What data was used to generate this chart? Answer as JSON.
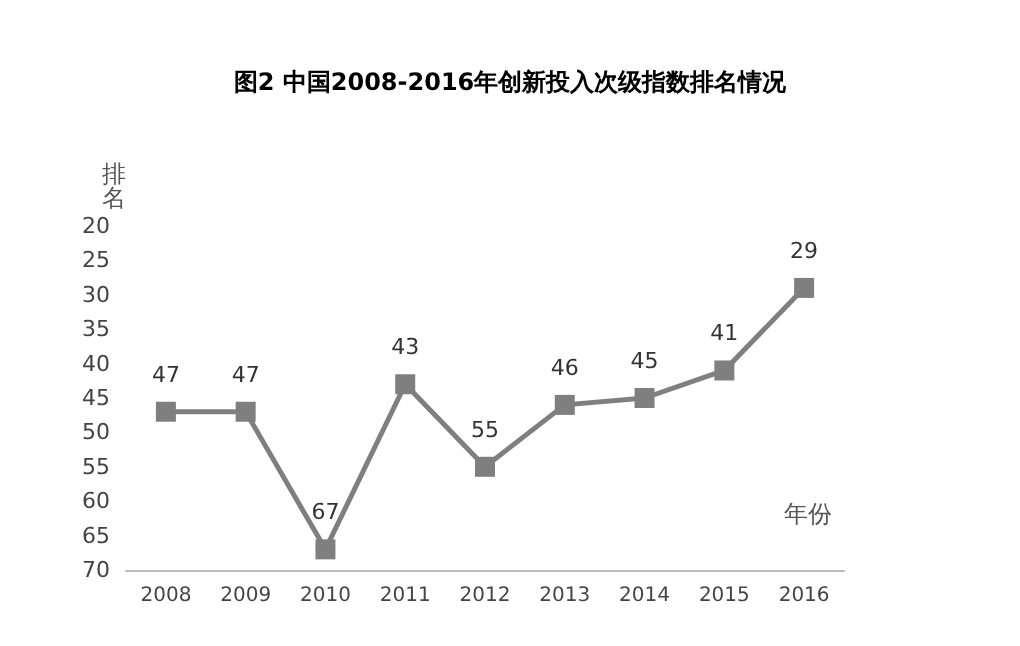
{
  "chart_data": {
    "type": "line",
    "title": "图2 中国2008-2016年创新投入次级指数排名情况",
    "xlabel": "年份",
    "ylabel": "排名",
    "categories": [
      "2008",
      "2009",
      "2010",
      "2011",
      "2012",
      "2013",
      "2014",
      "2015",
      "2016"
    ],
    "series": [
      {
        "color": "#7f7f7f",
        "values": [
          47,
          47,
          67,
          43,
          55,
          46,
          45,
          41,
          29
        ]
      }
    ],
    "ylim": [
      70,
      20
    ],
    "yticks": [
      20,
      25,
      30,
      35,
      40,
      45,
      50,
      55,
      60,
      65,
      70
    ],
    "data_labels": true,
    "marker": "square"
  }
}
